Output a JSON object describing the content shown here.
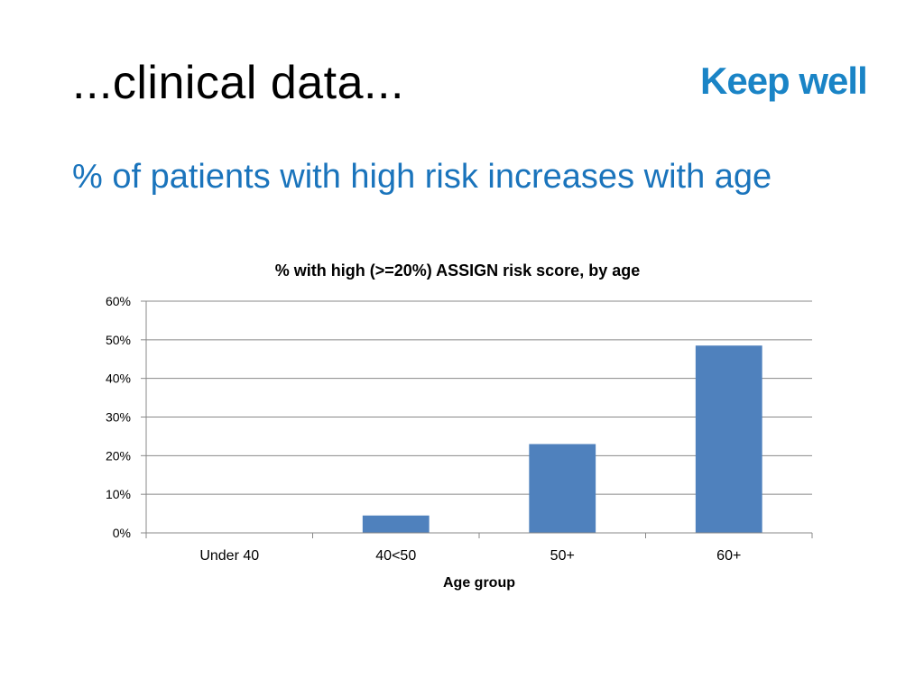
{
  "slide": {
    "title": "...clinical data...",
    "subtitle": "% of patients with high risk increases with age",
    "logo_text": "Keep well"
  },
  "colors": {
    "bar": "#4f81bd",
    "grid": "#888888",
    "subtitle": "#1a74bc",
    "logo": "#1a84c6"
  },
  "chart_data": {
    "type": "bar",
    "title": "% with high (>=20%) ASSIGN risk score, by age",
    "xlabel": "Age group",
    "ylabel": "",
    "categories": [
      "Under 40",
      "40<50",
      "50+",
      "60+"
    ],
    "values": [
      0,
      4.5,
      23,
      48.5
    ],
    "ylim": [
      0,
      60
    ],
    "yticks": [
      0,
      10,
      20,
      30,
      40,
      50,
      60
    ],
    "ytick_labels": [
      "0%",
      "10%",
      "20%",
      "30%",
      "40%",
      "50%",
      "60%"
    ],
    "grid": true,
    "legend": "none"
  }
}
